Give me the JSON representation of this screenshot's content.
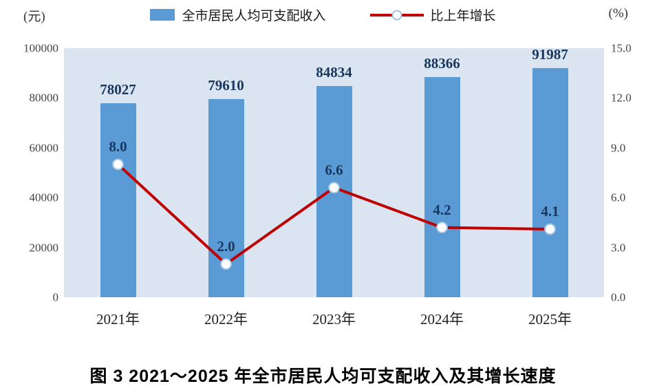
{
  "chart_data": {
    "type": "bar",
    "subtype": "bar+line combo",
    "categories": [
      "2021年",
      "2022年",
      "2023年",
      "2024年",
      "2025年"
    ],
    "series": [
      {
        "name": "全市居民人均可支配收入",
        "type": "bar",
        "axis": "left",
        "values": [
          78027,
          79610,
          84834,
          88366,
          91987
        ],
        "labels": [
          "78027",
          "79610",
          "84834",
          "88366",
          "91987"
        ]
      },
      {
        "name": "比上年增长",
        "type": "line",
        "axis": "right",
        "values": [
          8.0,
          2.0,
          6.6,
          4.2,
          4.1
        ],
        "labels": [
          "8.0",
          "2.0",
          "6.6",
          "4.2",
          "4.1"
        ]
      }
    ],
    "left_axis": {
      "label": "(元)",
      "min": 0,
      "max": 100000,
      "ticks": [
        0,
        20000,
        40000,
        60000,
        80000,
        100000
      ]
    },
    "right_axis": {
      "label": "(%)",
      "min": 0,
      "max": 15,
      "ticks": [
        "0.0",
        "3.0",
        "6.0",
        "9.0",
        "12.0",
        "15.0"
      ]
    },
    "grid": false,
    "legend_position": "top-center",
    "caption": "图 3  2021～2025 年全市居民人均可支配收入及其增长速度",
    "colors": {
      "bar": "#5b9bd5",
      "line": "#c00000",
      "marker_fill": "#ffffff",
      "marker_stroke": "#9dc3e6",
      "plot_bg": "#dbe5f1",
      "value_label": "#17375e"
    }
  }
}
